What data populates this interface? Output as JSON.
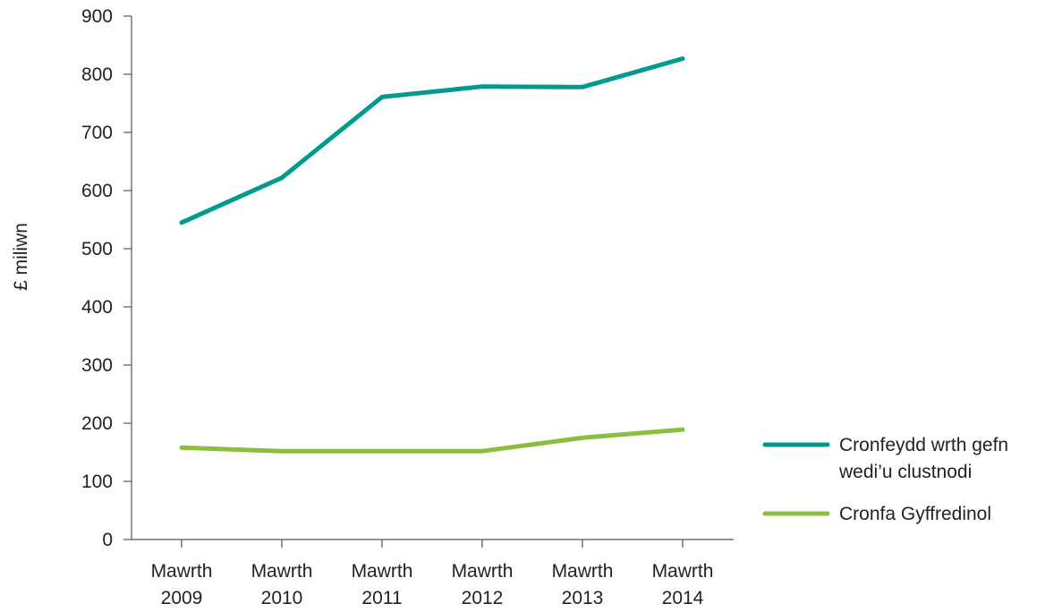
{
  "chart_data": {
    "type": "line",
    "title": "",
    "xlabel": "",
    "ylabel": "£ miliwn",
    "ylim": [
      0,
      900
    ],
    "yticks": [
      0,
      100,
      200,
      300,
      400,
      500,
      600,
      700,
      800,
      900
    ],
    "grid": false,
    "legend_position": "right",
    "categories": [
      [
        "Mawrth",
        "2009"
      ],
      [
        "Mawrth",
        "2010"
      ],
      [
        "Mawrth",
        "2011"
      ],
      [
        "Mawrth",
        "2012"
      ],
      [
        "Mawrth",
        "2013"
      ],
      [
        "Mawrth",
        "2014"
      ]
    ],
    "series": [
      {
        "name": [
          "Cronfeydd wrth gefn",
          "wedi’u clustnodi"
        ],
        "color": "#009b8e",
        "values": [
          545,
          622,
          761,
          779,
          778,
          827
        ]
      },
      {
        "name": [
          "Cronfa Gyffredinol"
        ],
        "color": "#8cbd3f",
        "values": [
          158,
          152,
          152,
          152,
          175,
          189
        ]
      }
    ],
    "axis_color": "#555555"
  }
}
